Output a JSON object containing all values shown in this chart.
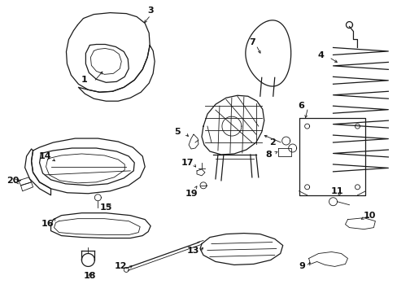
{
  "background_color": "#ffffff",
  "line_color": "#1a1a1a",
  "label_color": "#111111",
  "fig_width": 4.89,
  "fig_height": 3.6,
  "dpi": 100
}
